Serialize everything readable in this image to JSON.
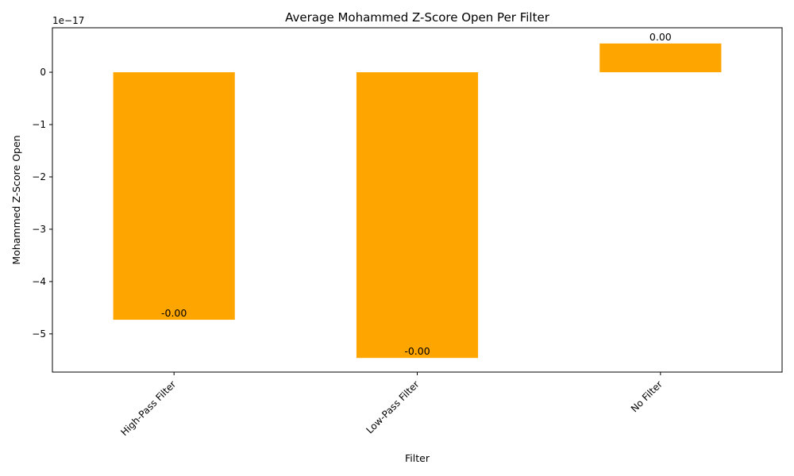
{
  "chart_data": {
    "type": "bar",
    "title": "Average Mohammed Z-Score Open Per Filter",
    "xlabel": "Filter",
    "ylabel": "Mohammed Z-Score Open",
    "y_offset_text": "1e−17",
    "y_multiplier": 1e-17,
    "categories": [
      "High-Pass Filter",
      "Low-Pass Filter",
      "No Filter"
    ],
    "values": [
      -4.73e-17,
      -5.46e-17,
      5.5e-18
    ],
    "data_labels": [
      "-0.00",
      "-0.00",
      "0.00"
    ],
    "ylim": [
      -5.73e-17,
      8.5e-18
    ],
    "y_ticks": [
      -5e-17,
      -4e-17,
      -3e-17,
      -2e-17,
      -1e-17,
      0
    ],
    "y_tick_labels": [
      "−5",
      "−4",
      "−3",
      "−2",
      "−1",
      "0"
    ],
    "bar_color": "#ffa500",
    "grid": false,
    "legend": "none"
  }
}
